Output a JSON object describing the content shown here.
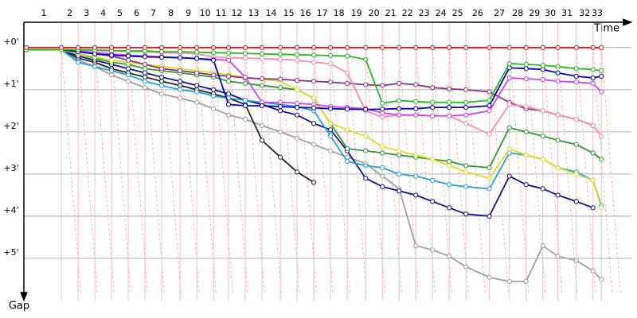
{
  "chart_data": {
    "type": "line",
    "x_label": "Time",
    "y_label": "Gap",
    "xlim": [
      0,
      36.2
    ],
    "xticks": [
      {
        "value": 2.1,
        "label": "1"
      },
      {
        "value": 3.1,
        "label": "2"
      },
      {
        "value": 4.1,
        "label": "3"
      },
      {
        "value": 5.1,
        "label": "4"
      },
      {
        "value": 6.1,
        "label": "5"
      },
      {
        "value": 7.1,
        "label": "6"
      },
      {
        "value": 8.1,
        "label": "7"
      },
      {
        "value": 9.2,
        "label": "8"
      },
      {
        "value": 10.2,
        "label": "9"
      },
      {
        "value": 11.2,
        "label": "10"
      },
      {
        "value": 12.1,
        "label": "11"
      },
      {
        "value": 13.1,
        "label": "12"
      },
      {
        "value": 14.1,
        "label": "13"
      },
      {
        "value": 15.2,
        "label": "14"
      },
      {
        "value": 16.2,
        "label": "15"
      },
      {
        "value": 17.2,
        "label": "16"
      },
      {
        "value": 18.2,
        "label": "17"
      },
      {
        "value": 19.2,
        "label": "18"
      },
      {
        "value": 20.3,
        "label": "19"
      },
      {
        "value": 21.3,
        "label": "20"
      },
      {
        "value": 22.3,
        "label": "21"
      },
      {
        "value": 23.3,
        "label": "22"
      },
      {
        "value": 24.3,
        "label": "23"
      },
      {
        "value": 25.3,
        "label": "24"
      },
      {
        "value": 26.3,
        "label": "25"
      },
      {
        "value": 27.7,
        "label": "26"
      },
      {
        "value": 28.9,
        "label": "27"
      },
      {
        "value": 29.9,
        "label": "28"
      },
      {
        "value": 30.9,
        "label": "29"
      },
      {
        "value": 31.8,
        "label": "30"
      },
      {
        "value": 32.9,
        "label": "31"
      },
      {
        "value": 33.9,
        "label": "32"
      },
      {
        "value": 34.4,
        "label": "33"
      }
    ],
    "x": [
      0,
      2.1,
      3.1,
      4.1,
      5.1,
      6.1,
      7.1,
      8.1,
      9.2,
      10.2,
      11.2,
      12.1,
      13.1,
      14.1,
      15.2,
      16.2,
      17.2,
      18.2,
      19.2,
      20.3,
      21.3,
      22.3,
      23.3,
      24.3,
      25.3,
      26.3,
      27.7,
      28.9,
      29.9,
      30.9,
      31.8,
      32.9,
      33.9,
      34.4
    ],
    "ylim": [
      -0.6,
      6
    ],
    "yticks": [
      {
        "value": 0,
        "label": "+0'"
      },
      {
        "value": 1,
        "label": "+1'"
      },
      {
        "value": 2,
        "label": "+2'"
      },
      {
        "value": 3,
        "label": "+3'"
      },
      {
        "value": 4,
        "label": "+4'"
      },
      {
        "value": 5,
        "label": "+5'"
      }
    ],
    "grid": true,
    "series": [
      {
        "color": "#a0a0a0",
        "values": [
          0.05,
          0.05,
          0.3,
          0.45,
          0.65,
          0.8,
          0.95,
          1.1,
          1.2,
          1.3,
          1.45,
          1.6,
          1.7,
          1.85,
          2.0,
          2.15,
          2.3,
          2.45,
          2.6,
          2.75,
          3.05,
          3.35,
          4.7,
          4.8,
          4.95,
          5.2,
          5.45,
          5.55,
          5.55,
          4.7,
          4.95,
          5.05,
          5.3,
          5.5
        ]
      },
      {
        "color": "#222222",
        "values": [
          0.05,
          0.05,
          0.25,
          0.35,
          0.5,
          0.6,
          0.7,
          0.8,
          0.9,
          1.0,
          1.1,
          1.2,
          1.35,
          2.2,
          2.6,
          2.95,
          3.2,
          null,
          null,
          null,
          null,
          null,
          null,
          null,
          null,
          null,
          null,
          null,
          null,
          null,
          null,
          null,
          null,
          null
        ]
      },
      {
        "color": "#101090",
        "values": [
          0.05,
          0.05,
          0.2,
          0.3,
          0.4,
          0.5,
          0.6,
          0.7,
          0.8,
          0.9,
          1.0,
          1.1,
          1.25,
          1.35,
          1.5,
          1.6,
          1.8,
          1.95,
          2.45,
          3.1,
          3.3,
          3.4,
          3.5,
          3.65,
          3.8,
          3.95,
          4.0,
          3.05,
          3.25,
          3.35,
          3.5,
          3.65,
          3.8,
          null
        ]
      },
      {
        "color": "#22a0e0",
        "values": [
          0.05,
          0.05,
          0.35,
          0.45,
          0.55,
          0.65,
          0.8,
          0.9,
          1.0,
          1.05,
          1.15,
          1.2,
          1.25,
          1.3,
          1.35,
          1.4,
          1.5,
          2.1,
          2.7,
          2.8,
          2.85,
          3.0,
          3.05,
          3.15,
          3.25,
          3.3,
          3.35,
          2.5,
          2.55,
          2.65,
          2.85,
          2.95,
          3.15,
          3.75
        ]
      },
      {
        "color": "#339933",
        "values": [
          0.05,
          0.05,
          0.15,
          0.25,
          0.35,
          0.4,
          0.5,
          0.55,
          0.6,
          0.65,
          0.7,
          0.8,
          0.85,
          0.9,
          0.95,
          1.0,
          1.2,
          1.8,
          2.4,
          2.45,
          2.5,
          2.55,
          2.6,
          2.65,
          2.7,
          2.8,
          2.85,
          1.9,
          2.0,
          2.1,
          2.2,
          2.3,
          2.5,
          2.65
        ]
      },
      {
        "color": "#dddd22",
        "values": [
          0.05,
          0.05,
          0.15,
          0.22,
          0.3,
          0.35,
          0.4,
          0.45,
          0.5,
          0.55,
          0.6,
          0.65,
          0.7,
          0.75,
          0.8,
          1.0,
          1.2,
          1.8,
          1.95,
          2.1,
          2.35,
          2.45,
          2.55,
          2.65,
          2.8,
          2.95,
          3.1,
          2.4,
          2.55,
          2.65,
          2.85,
          3.0,
          3.15,
          3.8
        ]
      },
      {
        "color": "#883388",
        "values": [
          0.05,
          0.05,
          0.1,
          0.15,
          0.2,
          0.3,
          0.4,
          0.5,
          0.55,
          0.6,
          0.65,
          0.68,
          0.72,
          0.74,
          0.75,
          0.78,
          0.8,
          0.82,
          0.85,
          0.88,
          0.9,
          0.85,
          0.88,
          0.95,
          0.98,
          1.0,
          1.05,
          1.3,
          1.45,
          1.5,
          1.6,
          1.7,
          1.85,
          null
        ]
      },
      {
        "color": "#ff88b0",
        "values": [
          0.05,
          0.05,
          0.06,
          0.07,
          0.08,
          0.09,
          0.1,
          0.12,
          0.13,
          0.15,
          0.22,
          0.24,
          0.25,
          0.26,
          0.28,
          0.3,
          0.35,
          0.38,
          0.6,
          1.5,
          1.65,
          1.6,
          1.6,
          1.62,
          1.62,
          1.8,
          2.05,
          1.35,
          1.4,
          1.5,
          1.6,
          1.7,
          1.85,
          2.1
        ]
      },
      {
        "color": "#cc44ee",
        "values": [
          0.05,
          0.05,
          0.08,
          0.12,
          0.15,
          0.18,
          0.2,
          0.22,
          0.24,
          0.26,
          0.28,
          0.3,
          0.7,
          1.3,
          1.3,
          1.32,
          1.35,
          1.4,
          1.42,
          1.45,
          1.55,
          1.6,
          1.6,
          1.62,
          1.62,
          1.6,
          1.5,
          0.72,
          0.74,
          0.76,
          0.8,
          0.82,
          0.85,
          1.05
        ]
      },
      {
        "color": "#0000cc",
        "values": [
          0.05,
          0.05,
          0.1,
          0.15,
          0.18,
          0.2,
          0.22,
          0.23,
          0.24,
          0.26,
          0.3,
          1.35,
          1.38,
          1.38,
          1.4,
          1.42,
          1.43,
          1.45,
          1.46,
          1.47,
          1.46,
          1.45,
          1.45,
          1.42,
          1.42,
          1.42,
          1.38,
          0.48,
          0.5,
          0.52,
          0.6,
          0.68,
          0.72,
          0.68
        ]
      },
      {
        "color": "#22bb22",
        "values": [
          0.05,
          0.05,
          0.05,
          0.06,
          0.07,
          0.08,
          0.08,
          0.1,
          0.1,
          0.11,
          0.12,
          0.13,
          0.14,
          0.15,
          0.16,
          0.17,
          0.18,
          0.19,
          0.2,
          0.28,
          1.32,
          1.26,
          1.28,
          1.3,
          1.3,
          1.3,
          1.25,
          0.38,
          0.4,
          0.42,
          0.45,
          0.5,
          0.52,
          0.55
        ]
      },
      {
        "color": "#ee1111",
        "values": [
          0,
          0,
          0,
          0,
          0,
          0,
          0,
          0,
          0,
          0,
          0,
          0,
          0,
          0,
          0,
          0,
          0,
          0,
          0,
          0,
          0,
          0,
          0,
          0,
          0,
          0,
          0,
          0,
          0,
          0,
          0,
          0,
          0,
          0
        ]
      }
    ]
  }
}
